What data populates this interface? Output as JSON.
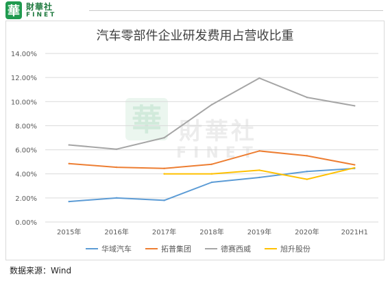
{
  "logo": {
    "seal": "華",
    "cn": "財華社",
    "en": "FINET"
  },
  "watermark": {
    "seal": "華",
    "cn": "財華社",
    "en": "FINET"
  },
  "colors": {
    "grid": "#d9d9d9",
    "axis_text": "#595959",
    "brand": "#1f9a4f"
  },
  "chart_data": {
    "type": "line",
    "title": "汽车零部件企业研发费用占营收比重",
    "categories": [
      "2015年",
      "2016年",
      "2017年",
      "2018年",
      "2019年",
      "2020年",
      "2021H1"
    ],
    "ylim": [
      0,
      14
    ],
    "yticks": [
      "0.00%",
      "2.00%",
      "4.00%",
      "6.00%",
      "8.00%",
      "10.00%",
      "12.00%",
      "14.00%"
    ],
    "y_unit": "%",
    "grid": true,
    "legend_position": "bottom",
    "series": [
      {
        "name": "华域汽车",
        "color": "#5b9bd5",
        "values": [
          1.7,
          2.0,
          1.8,
          3.3,
          3.7,
          4.2,
          4.45
        ]
      },
      {
        "name": "拓普集团",
        "color": "#ed7d31",
        "values": [
          4.85,
          4.55,
          4.45,
          4.8,
          5.9,
          5.5,
          4.75
        ]
      },
      {
        "name": "德赛西威",
        "color": "#a5a5a5",
        "values": [
          6.4,
          6.05,
          7.0,
          9.75,
          11.95,
          10.35,
          9.65
        ]
      },
      {
        "name": "旭升股份",
        "color": "#ffc000",
        "values": [
          null,
          null,
          4.0,
          4.0,
          4.3,
          3.55,
          4.5
        ]
      }
    ]
  },
  "source_text": "数据来源：Wind"
}
